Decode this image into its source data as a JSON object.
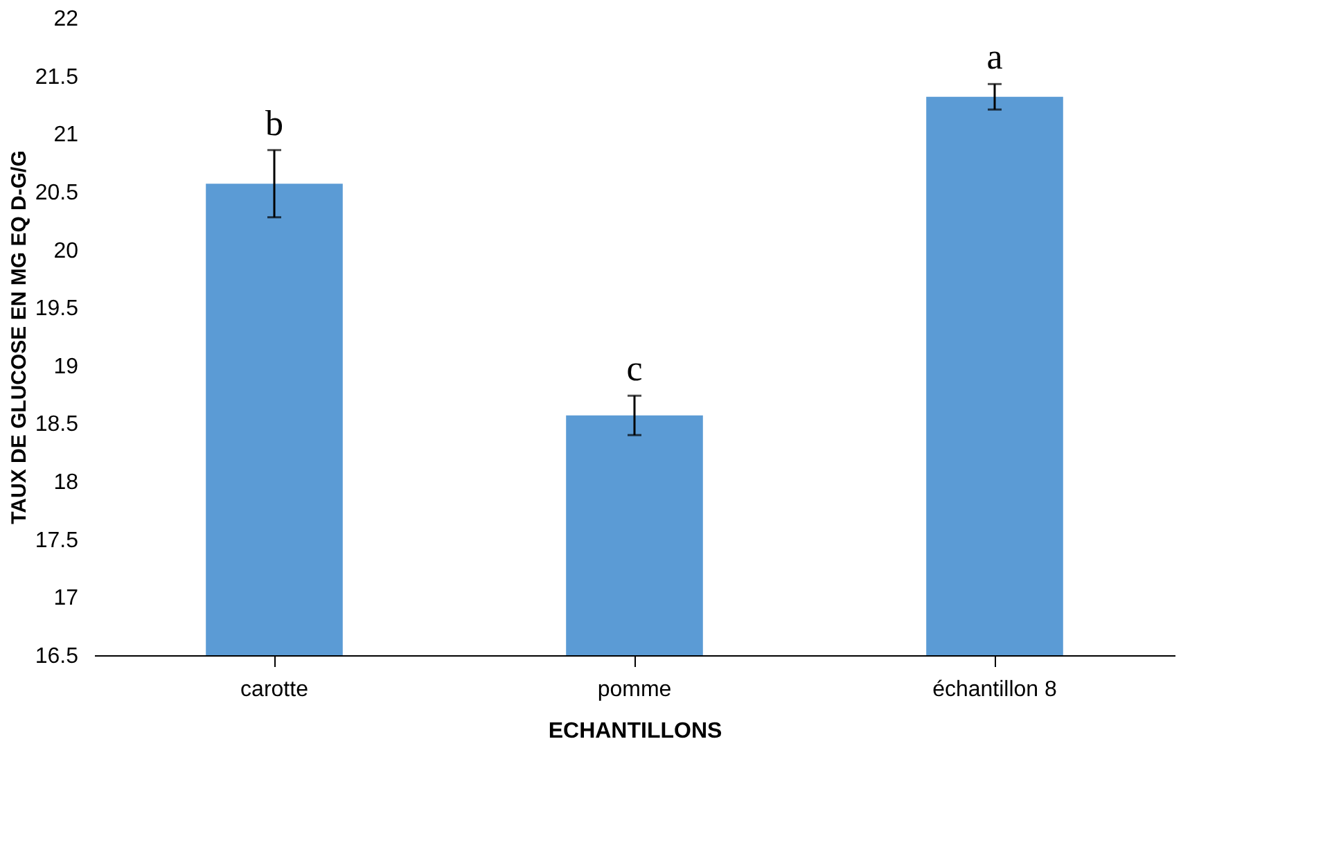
{
  "chart_data": {
    "type": "bar",
    "xlabel": "ECHANTILLONS",
    "ylabel": "TAUX DE GLUCOSE EN  MG EQ D-G/G",
    "categories": [
      "carotte",
      "pomme",
      "échantillon 8"
    ],
    "values": [
      20.57,
      18.57,
      21.32
    ],
    "errors": [
      0.29,
      0.17,
      0.11
    ],
    "color": "#5b9bd5",
    "ylim": [
      16.5,
      22
    ],
    "yticks": [
      16.5,
      17,
      17.5,
      18,
      18.5,
      19,
      19.5,
      20,
      20.5,
      21,
      21.5,
      22
    ],
    "grid": false,
    "annotations": [
      "b",
      "c",
      "a"
    ]
  }
}
